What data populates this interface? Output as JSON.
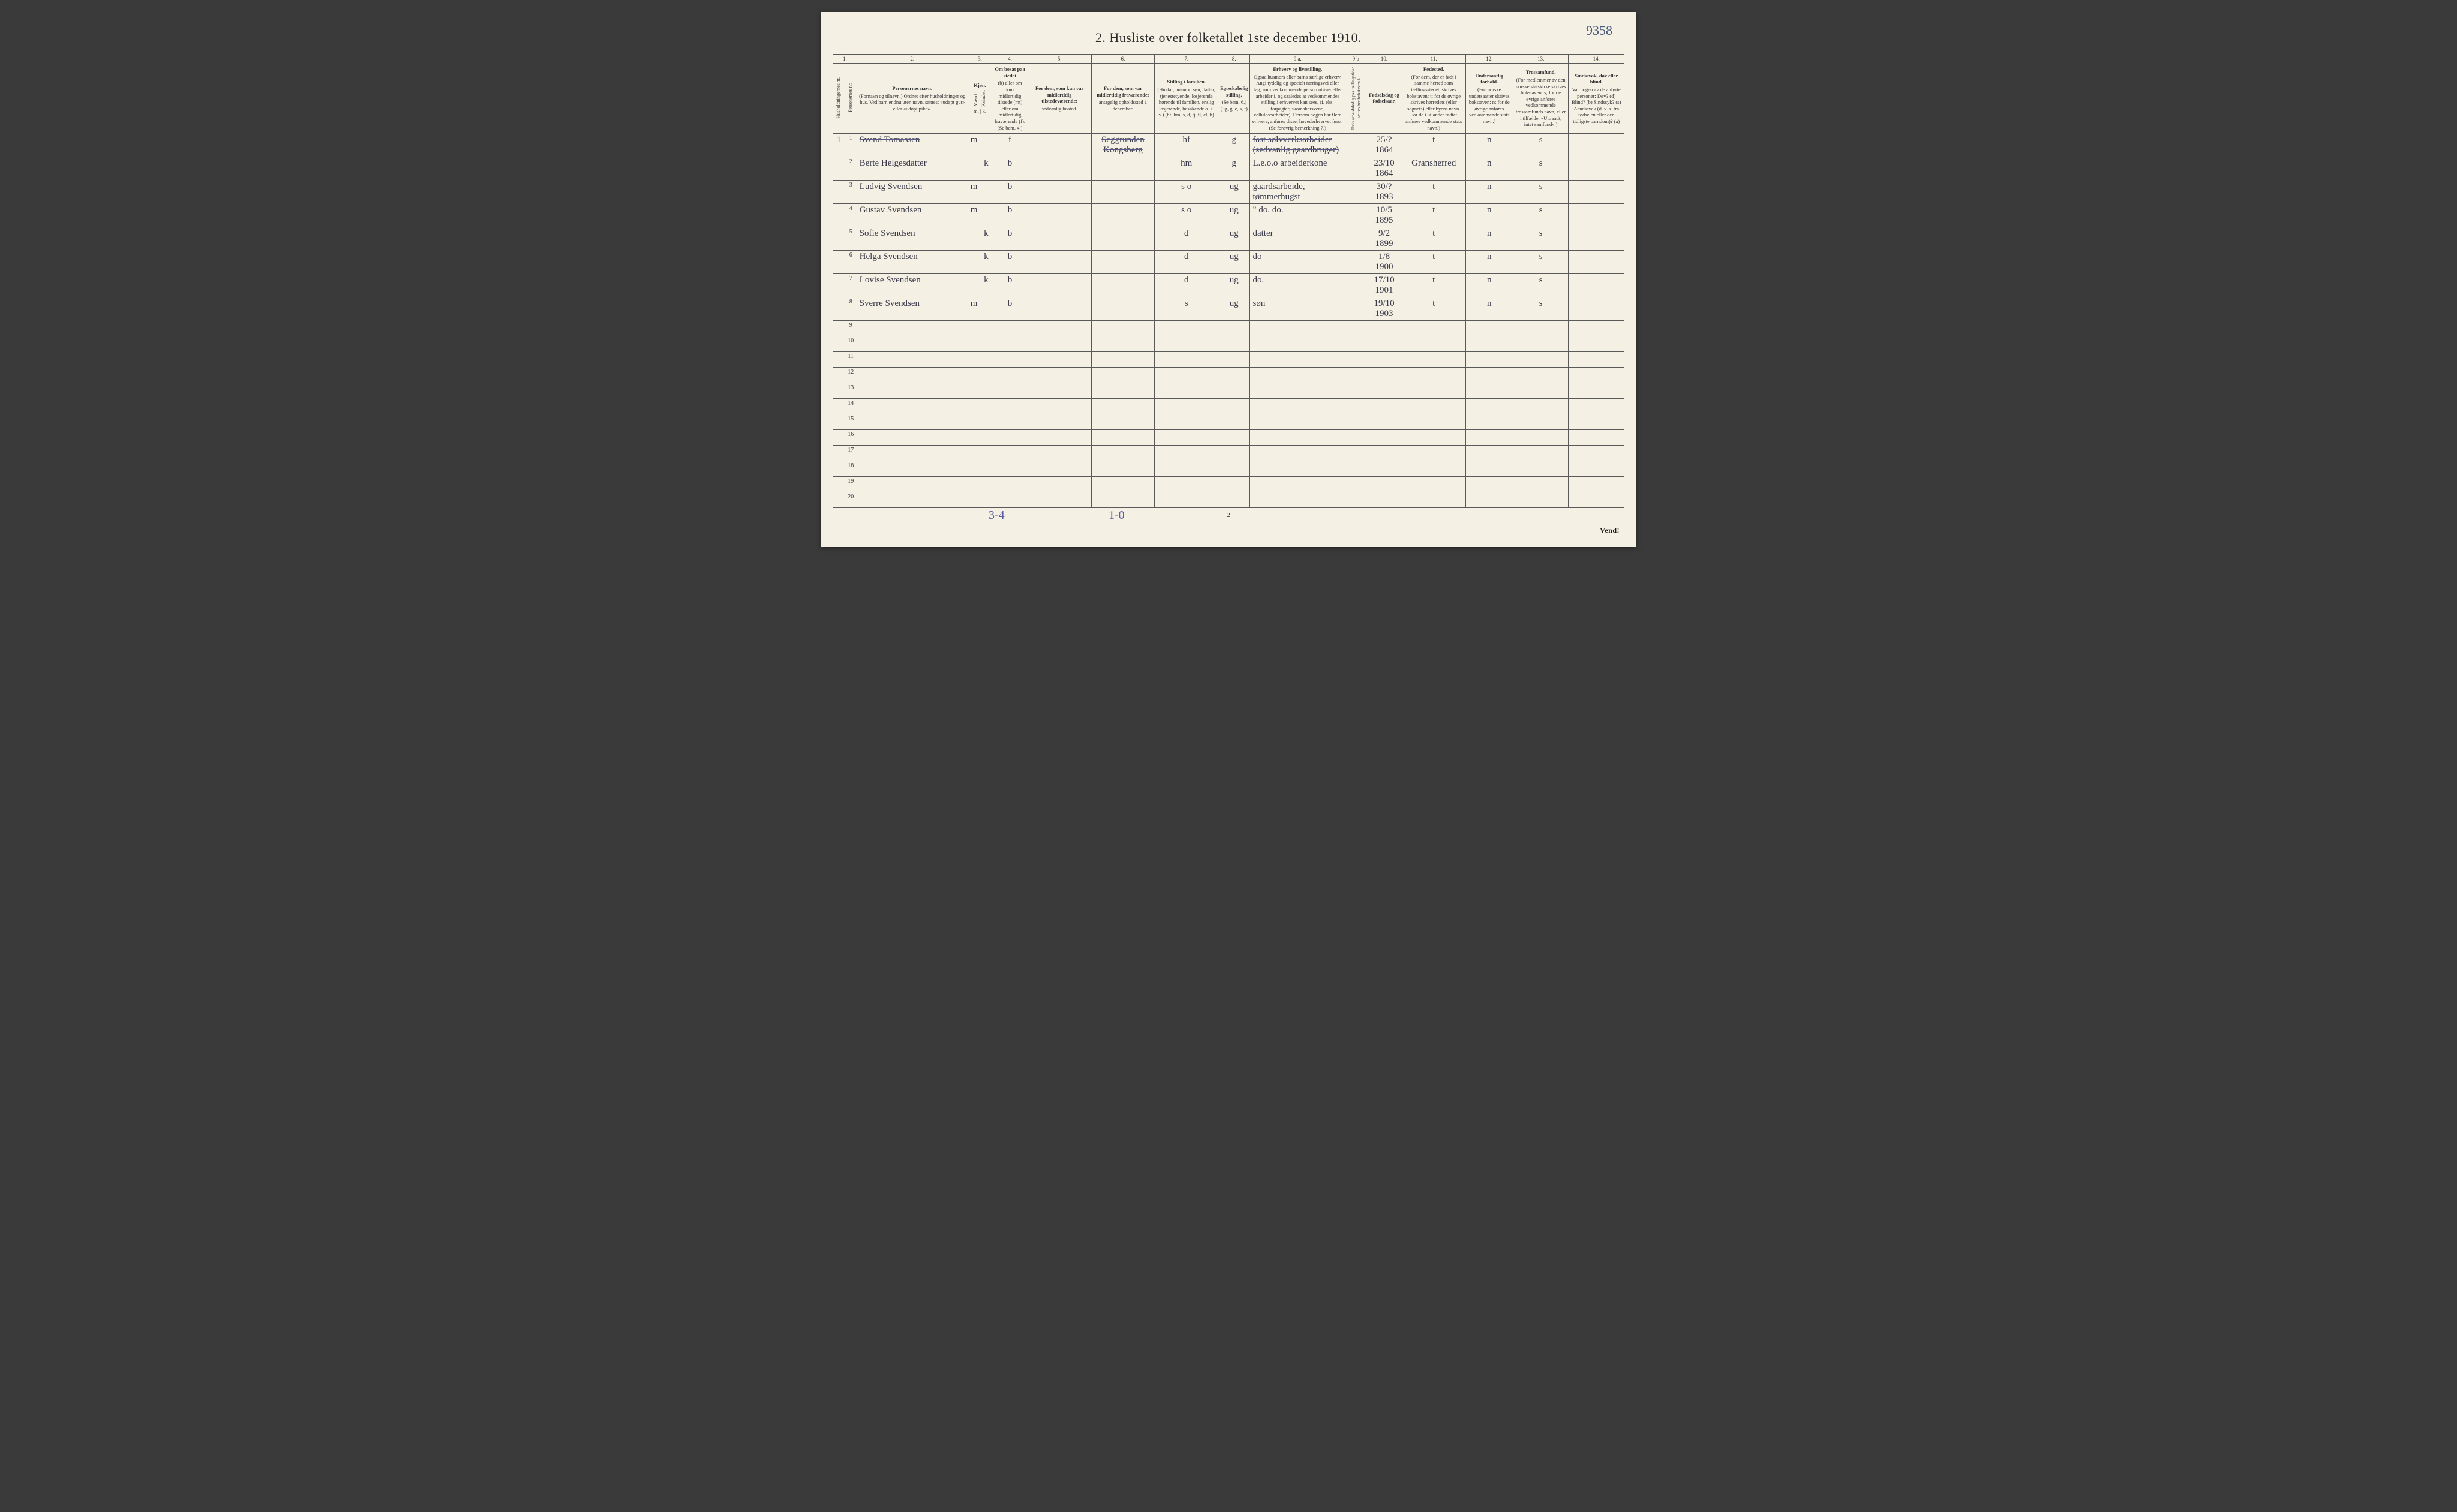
{
  "topRight": "9358",
  "title": "2.  Husliste over folketallet 1ste december 1910.",
  "colNumbers": [
    "1.",
    "2.",
    "3.",
    "4.",
    "5.",
    "6.",
    "7.",
    "8.",
    "9 a.",
    "9 b",
    "10.",
    "11.",
    "12.",
    "13.",
    "14."
  ],
  "headers": {
    "h1a": "Husholdningernes nr.",
    "h1b": "Personernes nr.",
    "h2_title": "Personernes navn.",
    "h2_body": "(Fornavn og tilnavn.)\nOrdnet efter husholdninger og hus.\nVed barn endnu uten navn, sættes: «udøpt gut» eller «udøpt pike».",
    "h3_title": "Kjøn.",
    "h3a": "Mænd.",
    "h3b": "Kvinder.",
    "h3_foot": "m. | k.",
    "h4_title": "Om bosat paa stedet",
    "h4_body": "(b) eller om kun midlertidig tilstede (mt) eller om midlertidig fraværende (f). (Se bem. 4.)",
    "h5_title": "For dem, som kun var midlertidig tilstedeværende:",
    "h5_body": "sedvanlig bosted.",
    "h6_title": "For dem, som var midlertidig fraværende:",
    "h6_body": "antagelig opholdssted 1 december.",
    "h7_title": "Stilling i familien.",
    "h7_body": "(Husfar, husmor, søn, datter, tjenestetyende, losjerende hørende til familien, enslig losjerende, besøkende o. s. v.)\n(hf, hm, s, d, tj, fl, el, b)",
    "h8_title": "Egteskabelig stilling.",
    "h8_body": "(Se bem. 6.)\n(ug, g, e, s, f)",
    "h9a_title": "Erhverv og livsstilling.",
    "h9a_body": "Ogsaa husmors eller barns særlige erhverv.\nAngi tydelig og specielt næringsvei eller fag, som vedkommende person utøver eller arbeider i, og saaledes at vedkommendes stilling i erhvervet kan sees, (f. eks. forpagter, skomakersvend, cellulosearbeider). Dersom nogen har flere erhverv, anføres disse, hovederhvervet først.\n(Se forøvrig bemerkning 7.)",
    "h9b": "Hvis arbeidsledig paa tællingstiden sættes her bokstaven l.",
    "h10_title": "Fødselsdag og fødselsaar.",
    "h11_title": "Fødested.",
    "h11_body": "(For dem, der er født i samme herred som tællingsstedet, skrives bokstaven: t; for de øvrige skrives herredets (eller sognets) eller byens navn.\nFor de i utlandet fødte: anføres vedkommende stats navn.)",
    "h12_title": "Undersaatlig forhold.",
    "h12_body": "(For norske undersaatter skrives bokstaven: n; for de øvrige anføres vedkommende stats navn.)",
    "h13_title": "Trossamfund.",
    "h13_body": "(For medlemmer av den norske statskirke skrives bokstaven: s; for de øvrige anføres vedkommende trossamfunds navn, eller i tilfælde: «Uttraadt, intet samfund».)",
    "h14_title": "Sindssvak, døv eller blind.",
    "h14_body": "Var nogen av de anførte personer:\nDøv?      (d)\nBlind?    (b)\nSindssyk? (s)\nAandssvak (d. v. s. fra fødselen eller den tidligste barndom)? (a)"
  },
  "rows": [
    {
      "hh": "1",
      "num": "1",
      "name": "Svend Tomassen",
      "sexM": "m",
      "sexK": "",
      "res": "f",
      "col5": "",
      "col6": "Seggrunden Kongsberg",
      "fam": "hf",
      "mar": "g",
      "occ": "fast sølvverksarbeider (sedvanlig gaardbruger)",
      "c9b": "",
      "birth": "25/? 1864",
      "born": "t",
      "nat": "n",
      "rel": "s",
      "c14": "",
      "struck": true
    },
    {
      "hh": "",
      "num": "2",
      "name": "Berte Helgesdatter",
      "sexM": "",
      "sexK": "k",
      "res": "b",
      "col5": "",
      "col6": "",
      "fam": "hm",
      "mar": "g",
      "occ": "L.e.o.o arbeiderkone",
      "c9b": "",
      "birth": "23/10 1864",
      "born": "Gransherred",
      "nat": "n",
      "rel": "s",
      "c14": "",
      "struck": false
    },
    {
      "hh": "",
      "num": "3",
      "name": "Ludvig Svendsen",
      "sexM": "m",
      "sexK": "",
      "res": "b",
      "col5": "",
      "col6": "",
      "fam": "s  o",
      "mar": "ug",
      "occ": "gaardsarbeide, tømmerhugst",
      "c9b": "",
      "birth": "30/? 1893",
      "born": "t",
      "nat": "n",
      "rel": "s",
      "c14": "",
      "struck": false
    },
    {
      "hh": "",
      "num": "4",
      "name": "Gustav Svendsen",
      "sexM": "m",
      "sexK": "",
      "res": "b",
      "col5": "",
      "col6": "",
      "fam": "s  o",
      "mar": "ug",
      "occ": "\"   do.   do.",
      "c9b": "",
      "birth": "10/5 1895",
      "born": "t",
      "nat": "n",
      "rel": "s",
      "c14": "",
      "struck": false
    },
    {
      "hh": "",
      "num": "5",
      "name": "Sofie Svendsen",
      "sexM": "",
      "sexK": "k",
      "res": "b",
      "col5": "",
      "col6": "",
      "fam": "d",
      "mar": "ug",
      "occ": "datter",
      "c9b": "",
      "birth": "9/2 1899",
      "born": "t",
      "nat": "n",
      "rel": "s",
      "c14": "",
      "struck": false
    },
    {
      "hh": "",
      "num": "6",
      "name": "Helga Svendsen",
      "sexM": "",
      "sexK": "k",
      "res": "b",
      "col5": "",
      "col6": "",
      "fam": "d",
      "mar": "ug",
      "occ": "do",
      "c9b": "",
      "birth": "1/8 1900",
      "born": "t",
      "nat": "n",
      "rel": "s",
      "c14": "",
      "struck": false
    },
    {
      "hh": "",
      "num": "7",
      "name": "Lovise Svendsen",
      "sexM": "",
      "sexK": "k",
      "res": "b",
      "col5": "",
      "col6": "",
      "fam": "d",
      "mar": "ug",
      "occ": "do.",
      "c9b": "",
      "birth": "17/10 1901",
      "born": "t",
      "nat": "n",
      "rel": "s",
      "c14": "",
      "struck": false
    },
    {
      "hh": "",
      "num": "8",
      "name": "Sverre Svendsen",
      "sexM": "m",
      "sexK": "",
      "res": "b",
      "col5": "",
      "col6": "",
      "fam": "s",
      "mar": "ug",
      "occ": "søn",
      "c9b": "",
      "birth": "19/10 1903",
      "born": "t",
      "nat": "n",
      "rel": "s",
      "c14": "",
      "struck": false
    }
  ],
  "emptyRowsFrom": 9,
  "emptyRowsTo": 20,
  "footer": {
    "tally1": "3-4",
    "tally2": "1-0",
    "pageNum": "2",
    "vend": "Vend!"
  },
  "colors": {
    "pageBg": "#f4f0e4",
    "border": "#5a5a5a",
    "ink": "#3a3a4a",
    "pencil": "#5a5aa0"
  }
}
